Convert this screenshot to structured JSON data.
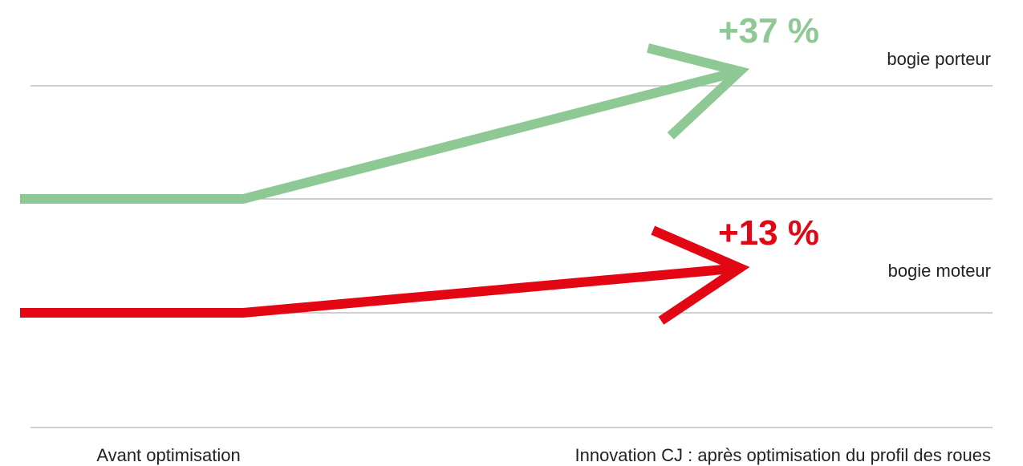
{
  "chart_data": {
    "type": "line",
    "title": "",
    "xlabel": "",
    "ylabel": "",
    "categories": [
      "Avant optimisation",
      "Innovation CJ : après optimisation du profil des roues"
    ],
    "grid": true,
    "legend": "none",
    "series": [
      {
        "name": "bogie porteur",
        "change_label": "+37 %",
        "change_percent": 37,
        "color": "#8ec995"
      },
      {
        "name": "bogie moteur",
        "change_label": "+13 %",
        "change_percent": 13,
        "color": "#e30613"
      }
    ]
  }
}
